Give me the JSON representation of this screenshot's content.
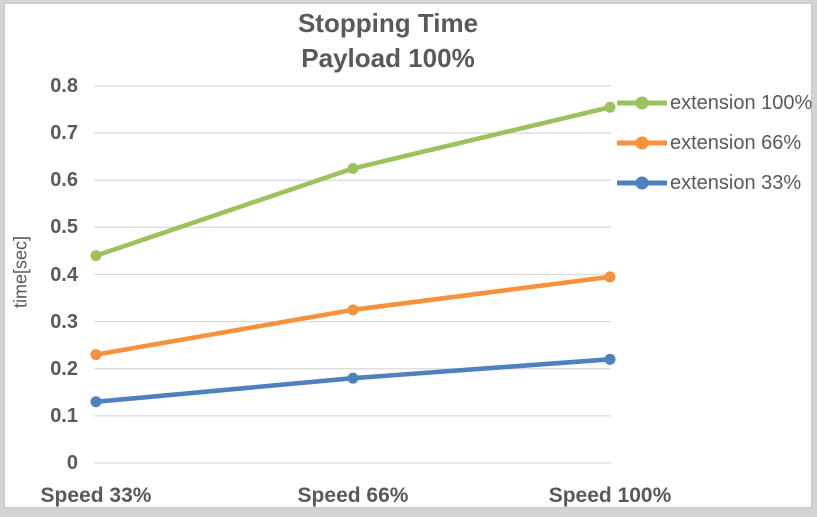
{
  "chart_data": {
    "type": "line",
    "title": "Stopping Time",
    "subtitle": "Payload 100%",
    "xlabel": "",
    "ylabel": "time[sec]",
    "categories": [
      "Speed 33%",
      "Speed 66%",
      "Speed 100%"
    ],
    "series": [
      {
        "name": "extension 100%",
        "color": "#9CC25D",
        "values": [
          0.44,
          0.625,
          0.755
        ]
      },
      {
        "name": "extension 66%",
        "color": "#F6913E",
        "values": [
          0.23,
          0.325,
          0.395
        ]
      },
      {
        "name": "extension 33%",
        "color": "#4E81BD",
        "values": [
          0.13,
          0.18,
          0.22
        ]
      }
    ],
    "ylim": [
      0,
      0.8
    ],
    "ytick_step": 0.1,
    "yticks": [
      "0.8",
      "0.7",
      "0.6",
      "0.5",
      "0.4",
      "0.3",
      "0.2",
      "0.1",
      "0"
    ],
    "grid": "horizontal",
    "legend_position": "right",
    "colors": {
      "grid": "#D9D9D9",
      "text": "#595959",
      "chart_background": "#FFFFFF",
      "outer_background": "#D3D3D3",
      "border": "#C9C9C9"
    }
  }
}
